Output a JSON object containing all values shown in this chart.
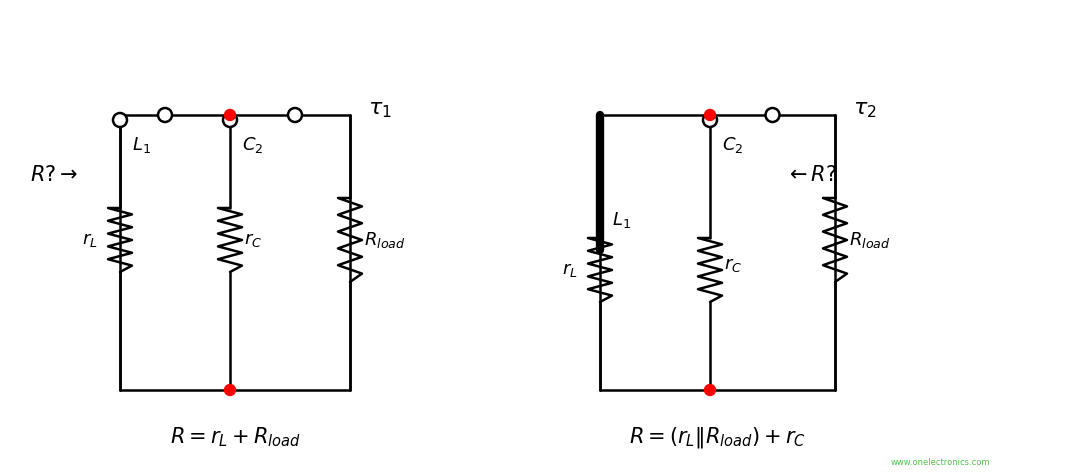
{
  "bg_color": "#ffffff",
  "line_color": "#000000",
  "red_dot_color": "#ff0000",
  "resistor_color": "#000000",
  "wire_linewidth": 1.8,
  "thick_wire_linewidth": 6.0,
  "circuit1": {
    "tau_label": "$\\tau_1$",
    "R_question_label": "$R?\\rightarrow$",
    "formula": "$R = r_L + R_{load}$",
    "L1_label": "$L_1$",
    "C2_label": "$C_2$",
    "rL_label": "$r_L$",
    "rC_label": "$r_C$",
    "Rload_label": "$R_{load}$"
  },
  "circuit2": {
    "tau_label": "$\\tau_2$",
    "R_question_label": "$\\leftarrow R?$",
    "formula": "$R = (r_L \\| R_{load}) + r_C$",
    "L1_label": "$L_1$",
    "C2_label": "$C_2$",
    "rL_label": "$r_L$",
    "rC_label": "$r_C$",
    "Rload_label": "$R_{load}$"
  }
}
